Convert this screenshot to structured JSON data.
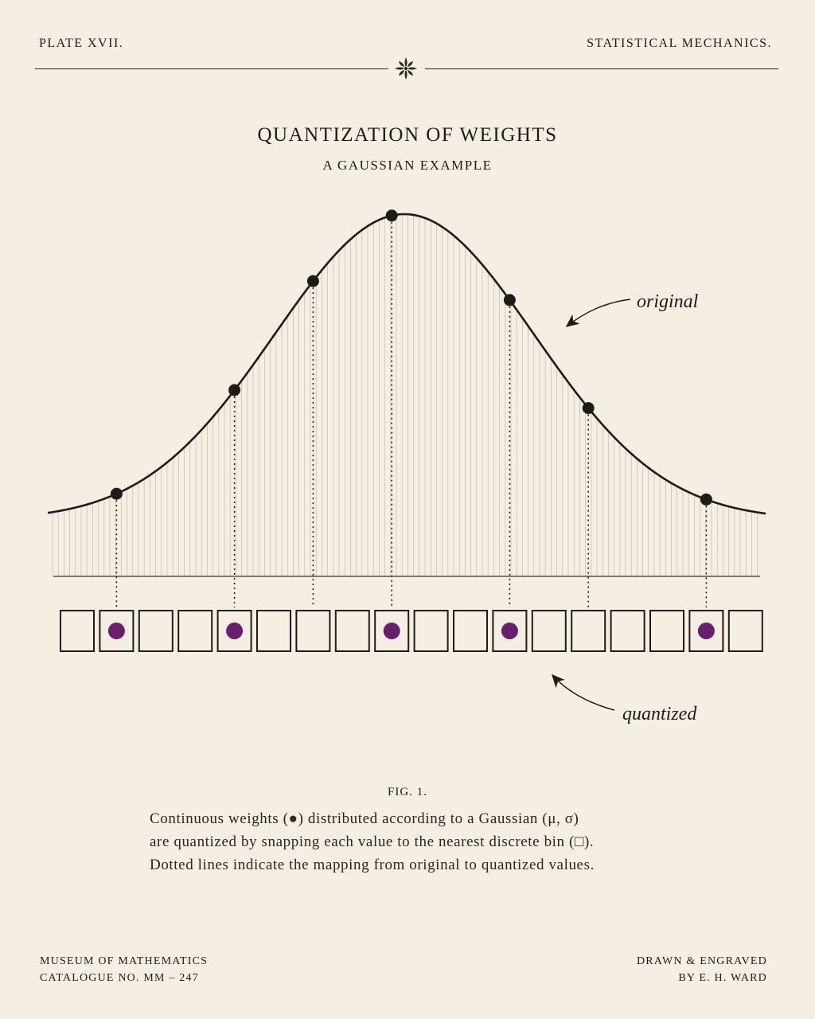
{
  "header": {
    "plate": "PLATE   XVII.",
    "subject": "STATISTICAL MECHANICS."
  },
  "title": "QUANTIZATION OF WEIGHTS",
  "subtitle": "A GAUSSIAN EXAMPLE",
  "annotations": {
    "original": "original",
    "quantized": "quantized"
  },
  "figure": {
    "label": "FIG. 1.",
    "caption_lines": [
      "Continuous weights (●) distributed according to a Gaussian (μ, σ)",
      "are quantized by snapping each value to the nearest discrete bin (□).",
      "Dotted lines indicate the mapping from original to quantized values."
    ]
  },
  "footer": {
    "left_line1": "MUSEUM OF MATHEMATICS",
    "left_line2": "CATALOGUE NO.   MM – 247",
    "right_line1": "DRAWN & ENGRAVED",
    "right_line2": "BY   E.  H.  WARD"
  },
  "bins": {
    "count": 18,
    "filled_indices": [
      1,
      4,
      8,
      11,
      16
    ],
    "sample_indices": [
      1,
      4,
      6,
      8,
      11,
      13,
      16
    ]
  },
  "colors": {
    "paper": "#f4efe2",
    "ink": "#1f1c18",
    "quantized_dot": "#6a1f6e",
    "hatch": "#c8c2b4"
  },
  "icons": {
    "ornament": "fleuron-icon"
  }
}
